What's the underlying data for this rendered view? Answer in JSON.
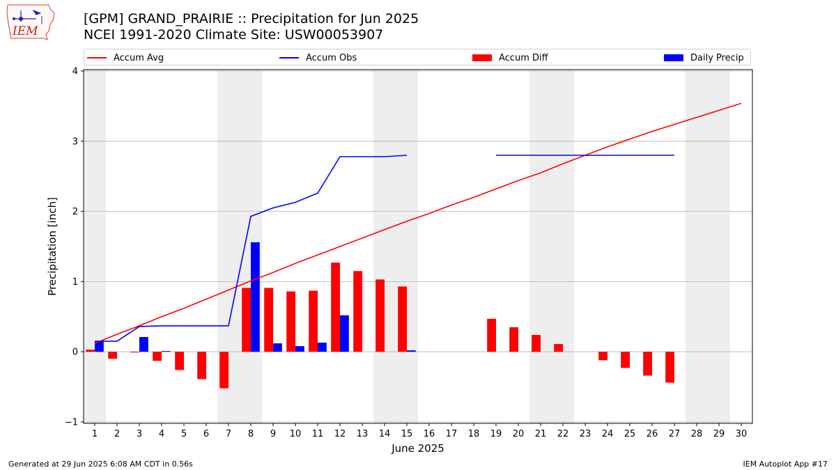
{
  "header": {
    "title_line1": "[GPM] GRAND_PRAIRIE :: Precipitation for Jun 2025",
    "title_line2": "NCEI 1991-2020 Climate Site: USW00053907"
  },
  "logo": {
    "text": "IEM",
    "icon": "iowa-state-map-weather-icon"
  },
  "legend": {
    "position": "top, above plot",
    "items": [
      {
        "label": "Accum Avg",
        "kind": "line",
        "color": "#ff0000"
      },
      {
        "label": "Accum Obs",
        "kind": "line",
        "color": "#0000ff"
      },
      {
        "label": "Accum Diff",
        "kind": "bar",
        "color": "#ff0000"
      },
      {
        "label": "Daily Precip",
        "kind": "bar",
        "color": "#0000ff"
      }
    ]
  },
  "footer": {
    "left": "Generated at 29 Jun 2025 6:08 AM CDT in 0.56s",
    "right": "IEM Autoplot App #17"
  },
  "chart_data": {
    "type": "bar",
    "title": "[GPM] GRAND_PRAIRIE :: Precipitation for Jun 2025",
    "subtitle": "NCEI 1991-2020 Climate Site: USW00053907",
    "xlabel": "June 2025",
    "ylabel": "Precipitation [inch]",
    "x": [
      1,
      2,
      3,
      4,
      5,
      6,
      7,
      8,
      9,
      10,
      11,
      12,
      13,
      14,
      15,
      16,
      17,
      18,
      19,
      20,
      21,
      22,
      23,
      24,
      25,
      26,
      27,
      28,
      29,
      30
    ],
    "xlim": [
      0.5,
      30.5
    ],
    "ylim": [
      -1.02,
      4.02
    ],
    "yticks": [
      -1,
      0,
      1,
      2,
      3,
      4
    ],
    "grid": "horizontal",
    "weekend_shading": [
      [
        0.5,
        1.5
      ],
      [
        6.5,
        8.5
      ],
      [
        13.5,
        15.5
      ],
      [
        20.5,
        22.5
      ],
      [
        27.5,
        29.5
      ]
    ],
    "series": [
      {
        "name": "Accum Avg",
        "type": "line",
        "color": "#ff0000",
        "values": [
          0.12,
          0.25,
          0.37,
          0.5,
          0.62,
          0.75,
          0.88,
          1.01,
          1.13,
          1.26,
          1.38,
          1.5,
          1.62,
          1.74,
          1.86,
          1.97,
          2.09,
          2.2,
          2.32,
          2.44,
          2.55,
          2.68,
          2.8,
          2.92,
          3.03,
          3.14,
          3.24,
          3.34,
          3.44,
          3.54
        ]
      },
      {
        "name": "Accum Obs",
        "type": "line",
        "color": "#0000ff",
        "values": [
          0.15,
          0.15,
          0.36,
          0.37,
          0.37,
          0.37,
          0.37,
          1.93,
          2.05,
          2.13,
          2.26,
          2.78,
          2.78,
          2.78,
          2.8,
          null,
          null,
          null,
          2.8,
          2.8,
          2.8,
          2.8,
          2.8,
          2.8,
          2.8,
          2.8,
          2.8,
          null,
          null,
          null
        ]
      },
      {
        "name": "Accum Diff",
        "type": "bar",
        "color": "#ff0000",
        "values": [
          0.03,
          -0.1,
          -0.01,
          -0.13,
          -0.26,
          -0.39,
          -0.52,
          0.91,
          0.91,
          0.86,
          0.87,
          1.27,
          1.15,
          1.03,
          0.93,
          null,
          null,
          null,
          0.47,
          0.35,
          0.24,
          0.11,
          0.0,
          -0.12,
          -0.23,
          -0.34,
          -0.44,
          null,
          null,
          null
        ]
      },
      {
        "name": "Daily Precip",
        "type": "bar",
        "color": "#0000ff",
        "values": [
          0.15,
          0.0,
          0.21,
          0.01,
          0,
          0,
          0,
          1.56,
          0.12,
          0.08,
          0.13,
          0.52,
          0,
          0,
          0.02,
          null,
          null,
          null,
          0,
          0,
          0,
          0,
          0,
          0,
          0,
          0,
          0,
          null,
          null,
          null
        ]
      }
    ]
  }
}
